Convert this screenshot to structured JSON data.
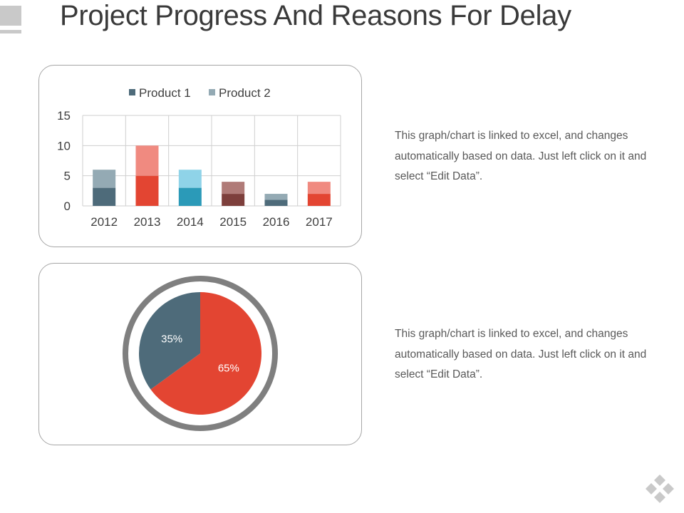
{
  "slide": {
    "title": "Project Progress And Reasons For Delay"
  },
  "descriptions": [
    "This graph/chart is linked to excel, and changes automatically based on data. Just left click on it and select “Edit Data”.",
    "This graph/chart is linked to excel, and changes automatically based on data. Just left click on it and select “Edit Data”."
  ],
  "colors": {
    "product1_by_year": [
      "#4e6b7a",
      "#e34532",
      "#2b9ab8",
      "#7d3f3c",
      "#4e6b7a",
      "#e34532"
    ],
    "product2_by_year": [
      "#94aab4",
      "#f08a80",
      "#8fd3e8",
      "#b07b78",
      "#94aab4",
      "#f08a80"
    ],
    "legend_product1": "#4e6b7a",
    "legend_product2": "#94aab4",
    "pie_slice_large": "#e34532",
    "pie_slice_small": "#4e6b7a",
    "pie_ring": "#7f7f7f",
    "gridline": "#cfcfcf"
  },
  "icons": [
    "corner-bars-icon",
    "diamond-logo-icon"
  ],
  "chart_data": [
    {
      "type": "bar",
      "stacked": true,
      "categories": [
        "2012",
        "2013",
        "2014",
        "2015",
        "2016",
        "2017"
      ],
      "series": [
        {
          "name": "Product 1",
          "values": [
            3,
            5,
            3,
            2,
            1,
            2
          ]
        },
        {
          "name": "Product 2",
          "values": [
            3,
            5,
            3,
            2,
            1,
            2
          ]
        }
      ],
      "yticks": [
        "0",
        "5",
        "10",
        "15"
      ],
      "ylim": [
        0,
        15
      ],
      "grid": true,
      "legend_position": "top"
    },
    {
      "type": "pie",
      "slices": [
        {
          "label": "65%",
          "value": 65
        },
        {
          "label": "35%",
          "value": 35
        }
      ]
    }
  ]
}
